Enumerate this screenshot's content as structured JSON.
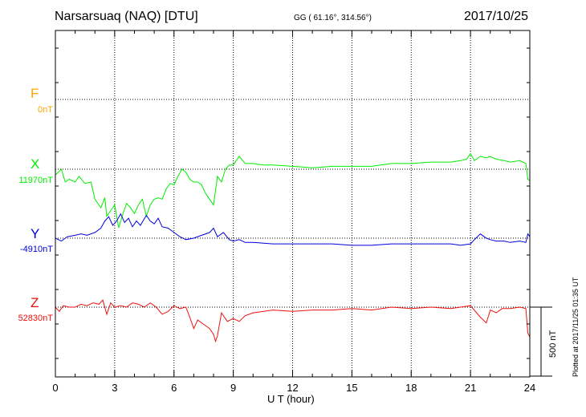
{
  "header": {
    "title": "Narsarsuaq (NAQ)  [DTU]",
    "coordinates": "GG ( 61.16°, 314.56°)",
    "date": "2017/10/25"
  },
  "credit": "Plotted at 2017/11/25 01:35 UT",
  "scale_bar_label": "500 nT",
  "chart_data": {
    "type": "line",
    "xlabel": "U T (hour)",
    "xlim": [
      0,
      24
    ],
    "x_ticks": [
      "0",
      "3",
      "6",
      "9",
      "12",
      "15",
      "18",
      "21",
      "24"
    ],
    "grid": true,
    "scale_bar_nT": 500,
    "series": [
      {
        "name": "F",
        "baseline_label": "0nT",
        "color": "#ffa500",
        "baseline_nT": 0,
        "offset_nT": 0,
        "x": [],
        "y": []
      },
      {
        "name": "X",
        "baseline_label": "11970nT",
        "color": "#00ee00",
        "baseline_nT": 11970,
        "x": [
          0,
          0.3,
          0.5,
          0.7,
          1.0,
          1.2,
          1.5,
          1.8,
          2.0,
          2.3,
          2.5,
          2.6,
          2.8,
          3.0,
          3.2,
          3.4,
          3.6,
          3.8,
          4.0,
          4.2,
          4.4,
          4.6,
          4.8,
          5.0,
          5.2,
          5.4,
          5.6,
          5.8,
          6.0,
          6.2,
          6.4,
          6.6,
          6.8,
          7.0,
          7.2,
          7.4,
          7.6,
          7.8,
          8.0,
          8.2,
          8.4,
          8.6,
          8.8,
          9.0,
          9.3,
          9.6,
          10.0,
          10.5,
          11,
          12,
          13,
          14,
          15,
          16,
          17,
          18,
          19,
          20,
          20.5,
          20.8,
          21.0,
          21.2,
          21.5,
          21.8,
          22.0,
          22.3,
          22.7,
          23.0,
          23.5,
          23.8,
          23.9,
          24.0
        ],
        "y": [
          11930,
          11970,
          11880,
          11900,
          11880,
          11920,
          11870,
          11880,
          11760,
          11700,
          11770,
          11640,
          11680,
          11720,
          11560,
          11650,
          11730,
          11700,
          11660,
          11720,
          11760,
          11640,
          11720,
          11760,
          11770,
          11760,
          11830,
          11870,
          11860,
          11920,
          11970,
          11950,
          11900,
          11880,
          11880,
          11860,
          11800,
          11760,
          11720,
          11920,
          11880,
          11970,
          12000,
          12000,
          12060,
          12010,
          12010,
          12000,
          12000,
          11990,
          11980,
          11990,
          11990,
          11990,
          12010,
          12010,
          12020,
          12020,
          12030,
          12040,
          12080,
          12030,
          12060,
          12050,
          12060,
          12040,
          12030,
          12020,
          12030,
          12010,
          11900,
          11890
        ]
      },
      {
        "name": "Y",
        "baseline_label": "-4910nT",
        "color": "#0000dd",
        "baseline_nT": -4910,
        "x": [
          0,
          0.3,
          0.6,
          1.0,
          1.3,
          1.6,
          2.0,
          2.3,
          2.5,
          2.7,
          2.9,
          3.1,
          3.3,
          3.5,
          3.7,
          3.9,
          4.1,
          4.3,
          4.6,
          4.8,
          5.0,
          5.2,
          5.4,
          5.7,
          6.0,
          6.3,
          6.6,
          7.0,
          7.4,
          7.8,
          8.0,
          8.2,
          8.5,
          8.8,
          9.0,
          9.3,
          9.6,
          10,
          11,
          12,
          13,
          14,
          15,
          16,
          17,
          18,
          19,
          20,
          20.5,
          21.0,
          21.2,
          21.5,
          21.8,
          22.0,
          22.3,
          22.7,
          23.0,
          23.5,
          23.8,
          23.9,
          24.0
        ],
        "y": [
          -4910,
          -4930,
          -4900,
          -4890,
          -4880,
          -4890,
          -4870,
          -4840,
          -4790,
          -4760,
          -4820,
          -4790,
          -4740,
          -4800,
          -4770,
          -4830,
          -4790,
          -4820,
          -4750,
          -4790,
          -4810,
          -4770,
          -4830,
          -4840,
          -4870,
          -4900,
          -4920,
          -4910,
          -4890,
          -4870,
          -4840,
          -4900,
          -4870,
          -4920,
          -4930,
          -4920,
          -4940,
          -4940,
          -4950,
          -4950,
          -4950,
          -4950,
          -4960,
          -4960,
          -4950,
          -4950,
          -4950,
          -4950,
          -4960,
          -4950,
          -4920,
          -4880,
          -4910,
          -4920,
          -4930,
          -4930,
          -4940,
          -4930,
          -4940,
          -4880,
          -4900
        ]
      },
      {
        "name": "Z",
        "baseline_label": "52830nT",
        "color": "#ee1111",
        "baseline_nT": 52830,
        "x": [
          0,
          0.2,
          0.4,
          0.7,
          1.0,
          1.3,
          1.6,
          1.9,
          2.2,
          2.4,
          2.6,
          2.8,
          3.0,
          3.3,
          3.6,
          3.9,
          4.2,
          4.5,
          4.8,
          5.1,
          5.4,
          5.7,
          6.0,
          6.3,
          6.6,
          6.8,
          7.0,
          7.2,
          7.4,
          7.6,
          7.8,
          8.0,
          8.1,
          8.2,
          8.4,
          8.7,
          9.0,
          9.3,
          9.6,
          10,
          11,
          12,
          13,
          14,
          15,
          16,
          17,
          18,
          19,
          20,
          21,
          21.5,
          21.8,
          22.0,
          22.3,
          22.6,
          23.0,
          23.5,
          23.8,
          23.9,
          24.0
        ],
        "y": [
          52830,
          52800,
          52840,
          52830,
          52830,
          52850,
          52840,
          52860,
          52850,
          52880,
          52780,
          52860,
          52830,
          52840,
          52830,
          52860,
          52850,
          52830,
          52860,
          52830,
          52780,
          52800,
          52840,
          52820,
          52830,
          52760,
          52680,
          52740,
          52720,
          52700,
          52680,
          52640,
          52590,
          52630,
          52790,
          52730,
          52750,
          52730,
          52770,
          52790,
          52810,
          52800,
          52810,
          52810,
          52820,
          52810,
          52830,
          52820,
          52830,
          52820,
          52840,
          52760,
          52720,
          52810,
          52790,
          52820,
          52820,
          52830,
          52820,
          52650,
          52620
        ]
      }
    ]
  }
}
